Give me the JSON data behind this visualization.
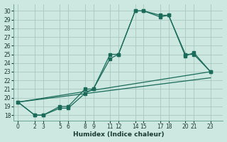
{
  "xlabel": "Humidex (Indice chaleur)",
  "bg_color": "#cce8e0",
  "grid_color": "#aac8c0",
  "line_color": "#1a6b5a",
  "x_ticks": [
    0,
    2,
    3,
    5,
    6,
    8,
    9,
    11,
    12,
    14,
    15,
    17,
    18,
    20,
    21,
    23
  ],
  "y_ticks": [
    18,
    19,
    20,
    21,
    22,
    23,
    24,
    25,
    26,
    27,
    28,
    29,
    30
  ],
  "ylim": [
    17.4,
    30.8
  ],
  "xlim": [
    -0.5,
    24.5
  ],
  "line1_x": [
    0,
    2,
    3,
    5,
    6,
    8,
    9,
    11,
    12,
    14,
    15,
    17,
    18,
    20,
    21,
    23
  ],
  "line1_y": [
    19.5,
    18.0,
    18.0,
    19.0,
    19.0,
    21.0,
    21.0,
    25.0,
    25.0,
    30.0,
    30.0,
    29.5,
    29.5,
    25.0,
    25.0,
    23.0
  ],
  "line2_x": [
    0,
    2,
    3,
    5,
    6,
    8,
    9,
    11,
    12,
    14,
    15,
    17,
    18,
    20,
    21,
    23
  ],
  "line2_y": [
    19.5,
    18.0,
    18.0,
    18.8,
    18.8,
    20.5,
    21.0,
    24.5,
    25.0,
    30.0,
    30.0,
    29.3,
    29.5,
    24.8,
    25.2,
    23.0
  ],
  "line3_x": [
    0,
    23
  ],
  "line3_y": [
    19.5,
    23.0
  ],
  "line4_x": [
    0,
    23
  ],
  "line4_y": [
    19.5,
    22.3
  ]
}
